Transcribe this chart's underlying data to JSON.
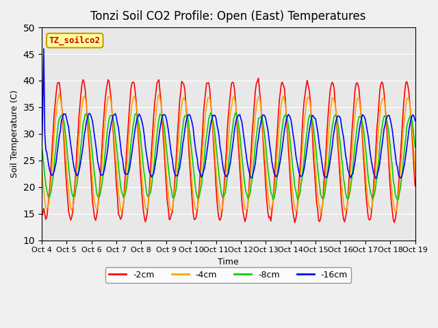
{
  "title": "Tonzi Soil CO2 Profile: Open (East) Temperatures",
  "xlabel": "Time",
  "ylabel": "Soil Temperature (C)",
  "ylim": [
    10,
    50
  ],
  "xlim": [
    0,
    360
  ],
  "background_color": "#e8e8e8",
  "plot_bg_color": "#e8e8e8",
  "series": [
    {
      "label": "-2cm",
      "color": "#ff0000"
    },
    {
      "label": "-4cm",
      "color": "#ffa500"
    },
    {
      "label": "-8cm",
      "color": "#00cc00"
    },
    {
      "label": "-16cm",
      "color": "#0000ff"
    }
  ],
  "x_ticks": [
    0,
    24,
    48,
    72,
    96,
    120,
    144,
    168,
    192,
    216,
    240,
    264,
    288,
    312,
    336,
    360
  ],
  "x_labels": [
    "Oct 4",
    "Oct 5",
    "Oct 6",
    "Oct 7",
    "Oct 8",
    "Oct 9",
    "Oct 10",
    "Oct 11",
    "Oct 12",
    "Oct 13",
    "Oct 14",
    "Oct 15",
    "Oct 16",
    "Oct 17",
    "Oct 18",
    "Oct 19"
  ],
  "legend_box_color": "#ffff99",
  "legend_box_edge": "#cc9900",
  "legend_text": "TZ_soilco2",
  "legend_text_color": "#cc0000"
}
